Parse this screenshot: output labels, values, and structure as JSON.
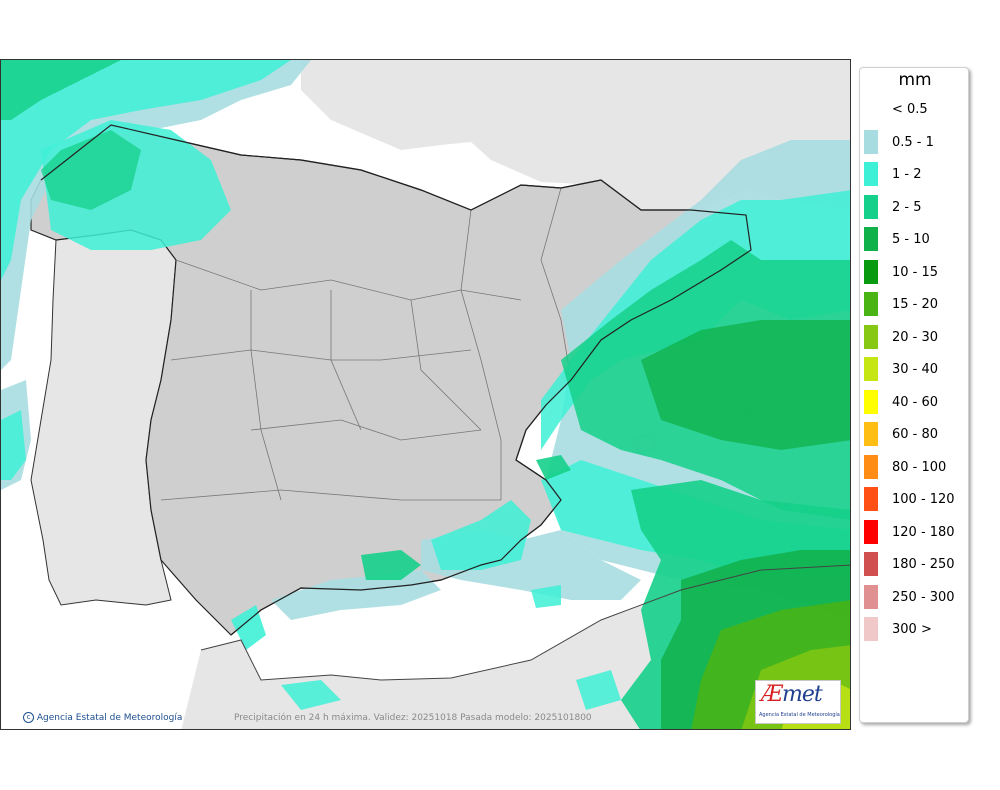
{
  "map": {
    "caption": "Precipitación en 24 h máxima. Validez: 20251018 Pasada modelo: 2025101800",
    "credit": "Agencia Estatal de Meteorología",
    "credit_icon": "copyright-icon",
    "logo": {
      "word_a": "Æ",
      "word_b": "met",
      "subtitle": "Agencia Estatal de Meteorología"
    },
    "colors": {
      "sea_no_rain": "#ffffff",
      "land_outside": "#e6e6e6",
      "land_spain": "#cfcfcf"
    }
  },
  "legend": {
    "unit": "mm",
    "items": [
      {
        "label": "< 0.5",
        "color": "#ffffff"
      },
      {
        "label": "0.5 - 1",
        "color": "#a7dde0"
      },
      {
        "label": "1 - 2",
        "color": "#3ef0d6"
      },
      {
        "label": "2 - 5",
        "color": "#15d08a"
      },
      {
        "label": "5 - 10",
        "color": "#10b04a"
      },
      {
        "label": "10 - 15",
        "color": "#0a9a10"
      },
      {
        "label": "15 - 20",
        "color": "#4ab414"
      },
      {
        "label": "20 - 30",
        "color": "#86c814"
      },
      {
        "label": "30 - 40",
        "color": "#c6e614"
      },
      {
        "label": "40 - 60",
        "color": "#ffff00"
      },
      {
        "label": "60 - 80",
        "color": "#ffbe14"
      },
      {
        "label": "80 - 100",
        "color": "#ff8c14"
      },
      {
        "label": "100 - 120",
        "color": "#ff4f14"
      },
      {
        "label": "120 - 180",
        "color": "#ff0000"
      },
      {
        "label": "180 - 250",
        "color": "#d05050"
      },
      {
        "label": "250 - 300",
        "color": "#e09090"
      },
      {
        "label": "300 >",
        "color": "#f0c8c8"
      }
    ]
  }
}
